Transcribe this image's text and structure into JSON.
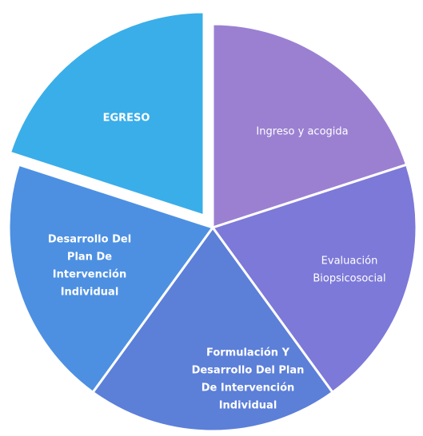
{
  "nodes": [
    {
      "lines": [
        "Ingreso y acogida"
      ]
    },
    {
      "lines": [
        "Evaluación",
        "Biopsicosocial"
      ]
    },
    {
      "lines": [
        "Formulación  Y",
        "Desarrollo Del Plan",
        "De Intervención",
        "Individual"
      ]
    },
    {
      "lines": [
        "Desarrollo Del",
        "Plan De",
        "Intervención",
        "Individual"
      ]
    },
    {
      "lines": [
        "EGRESO"
      ]
    }
  ]
}
